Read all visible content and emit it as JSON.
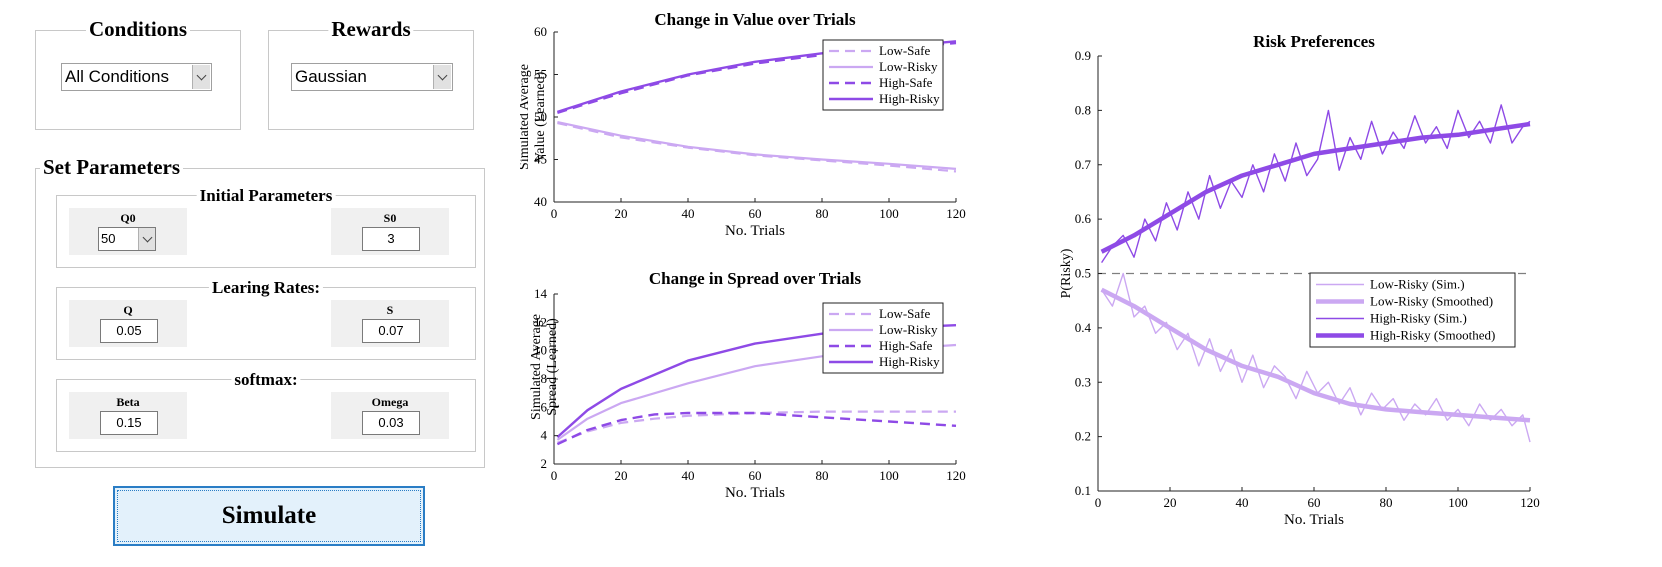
{
  "conditions": {
    "title": "Conditions",
    "selected": "All Conditions"
  },
  "rewards": {
    "title": "Rewards",
    "selected": "Gaussian"
  },
  "set_parameters": {
    "title": "Set Parameters",
    "initial": {
      "title": "Initial Parameters",
      "q0": {
        "label": "Q0",
        "value": "50"
      },
      "s0": {
        "label": "S0",
        "value": "3"
      }
    },
    "rates": {
      "title": "Learing Rates:",
      "q": {
        "label": "Q",
        "value": "0.05"
      },
      "s": {
        "label": "S",
        "value": "0.07"
      }
    },
    "softmax": {
      "title": "softmax:",
      "beta": {
        "label": "Beta",
        "value": "0.15"
      },
      "omega": {
        "label": "Omega",
        "value": "0.03"
      }
    }
  },
  "simulate_label": "Simulate",
  "colors": {
    "light": "#cba8f2",
    "dark": "#8e4ae6",
    "ref_line": "#7f7f7f",
    "button_border": "#2a7dc5"
  },
  "chart_data": [
    {
      "type": "line",
      "title": "Change in Value over Trials",
      "xlabel": "No. Trials",
      "ylabel": [
        "Simulated Average",
        "Value (Learned)"
      ],
      "xlim": [
        0,
        120
      ],
      "ylim": [
        40,
        60
      ],
      "xticks": [
        0,
        20,
        40,
        60,
        80,
        100,
        120
      ],
      "yticks": [
        40,
        45,
        50,
        55,
        60
      ],
      "legend_position": "top-right",
      "series": [
        {
          "name": "Low-Safe",
          "style": "light-dashed",
          "x": [
            1,
            20,
            40,
            60,
            80,
            100,
            120
          ],
          "y": [
            49.3,
            47.6,
            46.4,
            45.5,
            44.9,
            44.3,
            43.6
          ]
        },
        {
          "name": "Low-Risky",
          "style": "light-solid",
          "x": [
            1,
            20,
            40,
            60,
            80,
            100,
            120
          ],
          "y": [
            49.4,
            47.8,
            46.5,
            45.6,
            45.0,
            44.5,
            43.9
          ]
        },
        {
          "name": "High-Safe",
          "style": "dark-dashed",
          "x": [
            1,
            20,
            40,
            60,
            80,
            100,
            120
          ],
          "y": [
            50.5,
            52.8,
            54.9,
            56.3,
            57.3,
            58.0,
            58.7
          ]
        },
        {
          "name": "High-Risky",
          "style": "dark-solid",
          "x": [
            1,
            20,
            40,
            60,
            80,
            100,
            120
          ],
          "y": [
            50.6,
            53.0,
            55.0,
            56.5,
            57.5,
            58.2,
            58.9
          ]
        }
      ]
    },
    {
      "type": "line",
      "title": "Change in Spread over Trials",
      "xlabel": "No. Trials",
      "ylabel": [
        "Simulated Average",
        "Spread (Learned)"
      ],
      "xlim": [
        0,
        120
      ],
      "ylim": [
        2,
        14
      ],
      "xticks": [
        0,
        20,
        40,
        60,
        80,
        100,
        120
      ],
      "yticks": [
        2,
        4,
        6,
        8,
        10,
        12,
        14
      ],
      "legend_position": "top-right",
      "series": [
        {
          "name": "Low-Safe",
          "style": "light-dashed",
          "x": [
            1,
            10,
            20,
            30,
            40,
            60,
            80,
            100,
            120
          ],
          "y": [
            3.5,
            4.3,
            4.9,
            5.2,
            5.4,
            5.6,
            5.7,
            5.7,
            5.7
          ]
        },
        {
          "name": "Low-Risky",
          "style": "light-solid",
          "x": [
            1,
            10,
            20,
            40,
            60,
            80,
            100,
            120
          ],
          "y": [
            3.7,
            5.2,
            6.3,
            7.7,
            8.9,
            9.6,
            10.1,
            10.4
          ]
        },
        {
          "name": "High-Safe",
          "style": "dark-dashed",
          "x": [
            1,
            10,
            20,
            30,
            40,
            60,
            80,
            100,
            120
          ],
          "y": [
            3.4,
            4.4,
            5.1,
            5.5,
            5.6,
            5.6,
            5.3,
            5.0,
            4.7
          ]
        },
        {
          "name": "High-Risky",
          "style": "dark-solid",
          "x": [
            1,
            10,
            20,
            40,
            60,
            80,
            100,
            120
          ],
          "y": [
            3.9,
            5.8,
            7.3,
            9.3,
            10.5,
            11.2,
            11.6,
            11.8
          ]
        }
      ]
    },
    {
      "type": "line",
      "title": "Risk Preferences",
      "xlabel": "No. Trials",
      "ylabel": "P(Risky)",
      "xlim": [
        0,
        120
      ],
      "ylim": [
        0.1,
        0.9
      ],
      "xticks": [
        0,
        20,
        40,
        60,
        80,
        100,
        120
      ],
      "yticks": [
        0.1,
        0.2,
        0.3,
        0.4,
        0.5,
        0.6,
        0.7,
        0.8,
        0.9
      ],
      "reference_line": 0.5,
      "legend_position": "center-right",
      "series": [
        {
          "name": "Low-Risky (Sim.)",
          "style": "light-thin",
          "x": [
            1,
            4,
            7,
            10,
            13,
            16,
            19,
            22,
            25,
            28,
            31,
            34,
            37,
            40,
            43,
            46,
            49,
            52,
            55,
            58,
            61,
            64,
            67,
            70,
            73,
            76,
            79,
            82,
            85,
            88,
            91,
            94,
            97,
            100,
            103,
            106,
            109,
            112,
            115,
            118,
            120
          ],
          "y": [
            0.47,
            0.44,
            0.5,
            0.42,
            0.44,
            0.39,
            0.41,
            0.36,
            0.39,
            0.33,
            0.38,
            0.32,
            0.36,
            0.3,
            0.35,
            0.29,
            0.33,
            0.31,
            0.27,
            0.32,
            0.28,
            0.3,
            0.26,
            0.29,
            0.24,
            0.28,
            0.25,
            0.27,
            0.23,
            0.26,
            0.24,
            0.27,
            0.23,
            0.25,
            0.22,
            0.26,
            0.23,
            0.25,
            0.22,
            0.24,
            0.19
          ]
        },
        {
          "name": "Low-Risky (Smoothed)",
          "style": "light-thick",
          "x": [
            1,
            10,
            20,
            30,
            40,
            50,
            60,
            70,
            80,
            90,
            100,
            110,
            120
          ],
          "y": [
            0.47,
            0.44,
            0.4,
            0.36,
            0.33,
            0.31,
            0.28,
            0.26,
            0.25,
            0.245,
            0.24,
            0.235,
            0.23
          ]
        },
        {
          "name": "High-Risky (Sim.)",
          "style": "dark-thin",
          "x": [
            1,
            4,
            7,
            10,
            13,
            16,
            19,
            22,
            25,
            28,
            31,
            34,
            37,
            40,
            43,
            46,
            49,
            52,
            55,
            58,
            61,
            64,
            67,
            70,
            73,
            76,
            79,
            82,
            85,
            88,
            91,
            94,
            97,
            100,
            103,
            106,
            109,
            112,
            115,
            118,
            120
          ],
          "y": [
            0.52,
            0.55,
            0.57,
            0.53,
            0.6,
            0.56,
            0.63,
            0.58,
            0.65,
            0.6,
            0.68,
            0.62,
            0.67,
            0.64,
            0.7,
            0.65,
            0.72,
            0.67,
            0.74,
            0.68,
            0.71,
            0.8,
            0.69,
            0.75,
            0.71,
            0.78,
            0.72,
            0.76,
            0.73,
            0.79,
            0.74,
            0.77,
            0.73,
            0.8,
            0.75,
            0.78,
            0.74,
            0.81,
            0.74,
            0.77,
            0.78
          ]
        },
        {
          "name": "High-Risky (Smoothed)",
          "style": "dark-thick",
          "x": [
            1,
            10,
            20,
            30,
            40,
            50,
            60,
            70,
            80,
            90,
            100,
            110,
            120
          ],
          "y": [
            0.54,
            0.57,
            0.61,
            0.65,
            0.68,
            0.7,
            0.72,
            0.73,
            0.74,
            0.75,
            0.755,
            0.765,
            0.775
          ]
        }
      ]
    }
  ]
}
